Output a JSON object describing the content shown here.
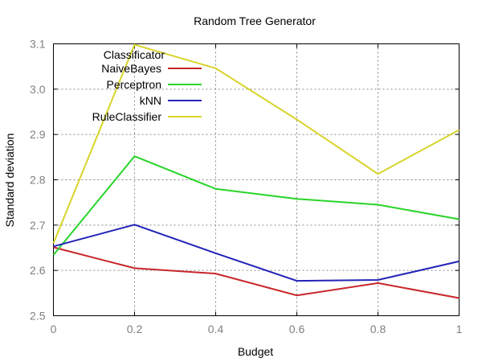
{
  "chart_data": {
    "type": "line",
    "title": "Random Tree Generator",
    "xlabel": "Budget",
    "ylabel": "Standard deviation",
    "xlim": [
      0,
      1
    ],
    "ylim": [
      2.5,
      3.1
    ],
    "x": [
      0,
      0.2,
      0.4,
      0.6,
      0.8,
      1
    ],
    "x_tick_labels": [
      "0",
      "0.2",
      "0.4",
      "0.6",
      "0.8",
      "1"
    ],
    "y_ticks": [
      2.5,
      2.6,
      2.7,
      2.8,
      2.9,
      3.0,
      3.1
    ],
    "y_tick_labels": [
      "2.5",
      "2.6",
      "2.7",
      "2.8",
      "2.9",
      "3.0",
      "3.1"
    ],
    "grid": true,
    "legend_title": "Classificator",
    "legend_position": "top-left",
    "series": [
      {
        "name": "NaiveBayes",
        "color": "#c8262a",
        "values": [
          2.651,
          2.605,
          2.593,
          2.545,
          2.572,
          2.539
        ]
      },
      {
        "name": "Perceptron",
        "color": "#29d52a",
        "values": [
          2.634,
          2.852,
          2.78,
          2.758,
          2.745,
          2.713
        ]
      },
      {
        "name": "kNN",
        "color": "#2424b8",
        "values": [
          2.653,
          2.701,
          2.638,
          2.577,
          2.579,
          2.62
        ]
      },
      {
        "name": "RuleClassifier",
        "color": "#d8d42a",
        "values": [
          2.66,
          3.098,
          3.046,
          2.933,
          2.813,
          2.91
        ]
      }
    ]
  }
}
